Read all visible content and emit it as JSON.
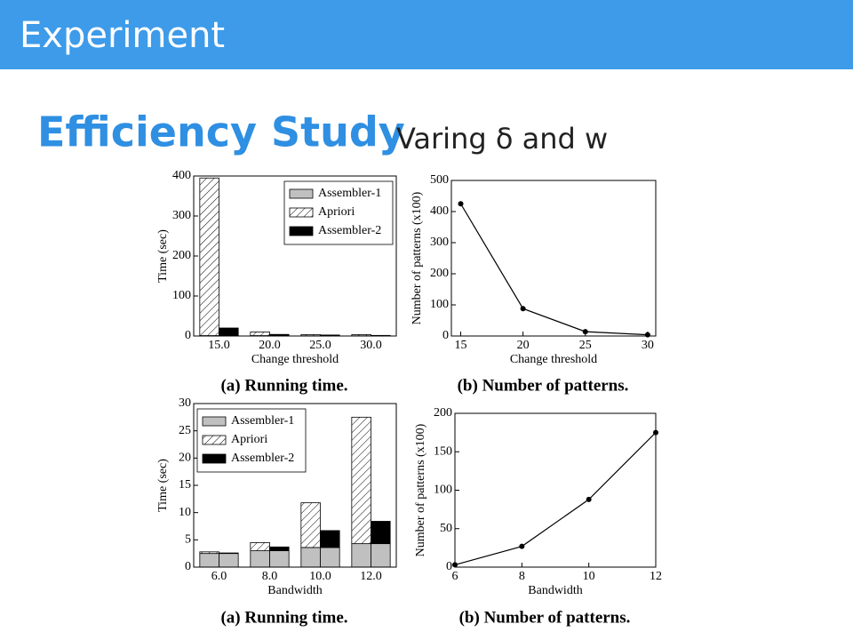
{
  "header": {
    "title": "Experiment"
  },
  "heading": {
    "title": "Efficiency Study",
    "subtitle": "Varing δ and w"
  },
  "chart_data": [
    {
      "type": "bar",
      "caption": "(a) Running time.",
      "xlabel": "Change threshold",
      "ylabel": "Time (sec)",
      "categories": [
        "15.0",
        "20.0",
        "25.0",
        "30.0"
      ],
      "series": [
        {
          "name": "Assembler-1",
          "color": "#c0c0c0",
          "values": [
            1,
            1,
            0.5,
            0.5
          ]
        },
        {
          "name": "Apriori",
          "color": "#ffffff",
          "hatch": true,
          "values": [
            394,
            9,
            3,
            3
          ]
        },
        {
          "name": "Assembler-2",
          "color": "#000000",
          "values": [
            19,
            3,
            2,
            1
          ]
        }
      ],
      "ylim": [
        0,
        400
      ],
      "yticks": [
        0,
        100,
        200,
        300,
        400
      ],
      "legend": "upper right"
    },
    {
      "type": "line",
      "caption": "(b) Number of patterns.",
      "xlabel": "Change threshold",
      "ylabel": "Number of patterns (x100)",
      "x": [
        15,
        20,
        25,
        30
      ],
      "values": [
        425,
        88,
        14,
        4
      ],
      "color": "#000000",
      "xlim": [
        14.25,
        30.65
      ],
      "xticks": [
        15,
        20,
        25,
        30
      ],
      "ylim": [
        0,
        500
      ],
      "yticks": [
        0,
        100,
        200,
        300,
        400,
        500
      ]
    },
    {
      "type": "bar",
      "caption": "(a) Running time.",
      "xlabel": "Bandwidth",
      "ylabel": "Time (sec)",
      "categories": [
        "6.0",
        "8.0",
        "10.0",
        "12.0"
      ],
      "series": [
        {
          "name": "Assembler-1",
          "color": "#c0c0c0",
          "values": [
            2.5,
            3.0,
            3.6,
            4.3
          ]
        },
        {
          "name": "Apriori",
          "color": "#ffffff",
          "hatch": true,
          "values": [
            0.3,
            1.5,
            8.2,
            23.2
          ]
        },
        {
          "name": "Assembler-2",
          "color": "#000000",
          "values": [
            0.1,
            0.7,
            3.1,
            4.1
          ]
        }
      ],
      "ylim": [
        0,
        30
      ],
      "yticks": [
        0,
        5,
        10,
        15,
        20,
        25,
        30
      ],
      "legend": "upper left"
    },
    {
      "type": "line",
      "caption": "(b) Number of patterns.",
      "xlabel": "Bandwidth",
      "ylabel": "Number of patterns (x100)",
      "x": [
        6,
        8,
        10,
        12
      ],
      "values": [
        3,
        27,
        88,
        175
      ],
      "color": "#000000",
      "xlim": [
        6,
        12
      ],
      "xticks": [
        6,
        8,
        10,
        12
      ],
      "ylim": [
        0,
        200
      ],
      "yticks": [
        0,
        50,
        100,
        150,
        200
      ]
    }
  ]
}
